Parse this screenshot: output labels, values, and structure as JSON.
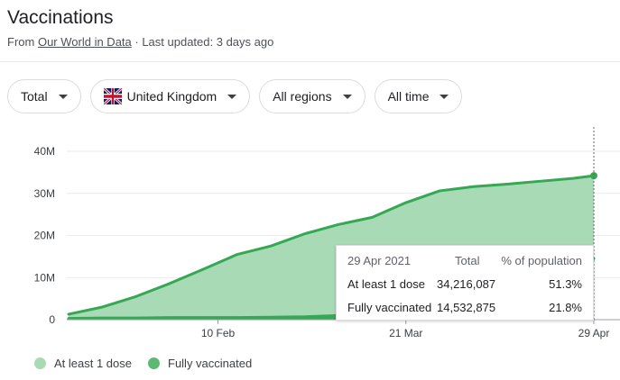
{
  "header": {
    "title": "Vaccinations",
    "from_prefix": "From",
    "source_link": "Our World in Data",
    "updated": "· Last updated: 3 days ago"
  },
  "filters": {
    "metric": "Total",
    "location": "United Kingdom",
    "regions": "All regions",
    "time": "All time"
  },
  "tooltip": {
    "date": "29 Apr 2021",
    "col_total": "Total",
    "col_pct": "% of population",
    "rows": [
      {
        "label": "At least 1 dose",
        "total": "34,216,087",
        "pct": "51.3%"
      },
      {
        "label": "Fully vaccinated",
        "total": "14,532,875",
        "pct": "21.8%"
      }
    ]
  },
  "legend": [
    {
      "label": "At least 1 dose",
      "color": "#a8dab5"
    },
    {
      "label": "Fully vaccinated",
      "color": "#5bb974"
    }
  ],
  "chart_data": {
    "type": "area",
    "x": [
      "2021-01-10",
      "2021-01-17",
      "2021-01-24",
      "2021-01-31",
      "2021-02-07",
      "2021-02-14",
      "2021-02-21",
      "2021-02-28",
      "2021-03-07",
      "2021-03-14",
      "2021-03-21",
      "2021-03-28",
      "2021-04-04",
      "2021-04-11",
      "2021-04-18",
      "2021-04-25",
      "2021-04-29"
    ],
    "series": [
      {
        "name": "At least 1 dose",
        "color": "#34a853",
        "fill": "#a8dab5",
        "values": [
          1.3,
          3.0,
          5.5,
          8.6,
          12.0,
          15.5,
          17.5,
          20.4,
          22.6,
          24.3,
          27.8,
          30.6,
          31.6,
          32.2,
          32.9,
          33.6,
          34.2
        ]
      },
      {
        "name": "Fully vaccinated",
        "color": "#34a853",
        "fill": "#34a853",
        "values": [
          0.3,
          0.4,
          0.4,
          0.5,
          0.5,
          0.5,
          0.6,
          0.7,
          1.0,
          1.4,
          2.1,
          3.5,
          5.0,
          7.3,
          9.9,
          12.8,
          14.5
        ]
      }
    ],
    "x_ticks": [
      "10 Feb",
      "21 Mar",
      "29 Apr"
    ],
    "y_ticks": [
      "0",
      "10M",
      "20M",
      "30M",
      "40M"
    ],
    "y_tick_values": [
      0,
      10,
      20,
      30,
      40
    ],
    "ylim": [
      0,
      40
    ],
    "y_unit": "M",
    "x_tick_dates": [
      "2021-02-10",
      "2021-03-21",
      "2021-04-29"
    ],
    "grid": true,
    "legend_position": "bottom-left"
  }
}
